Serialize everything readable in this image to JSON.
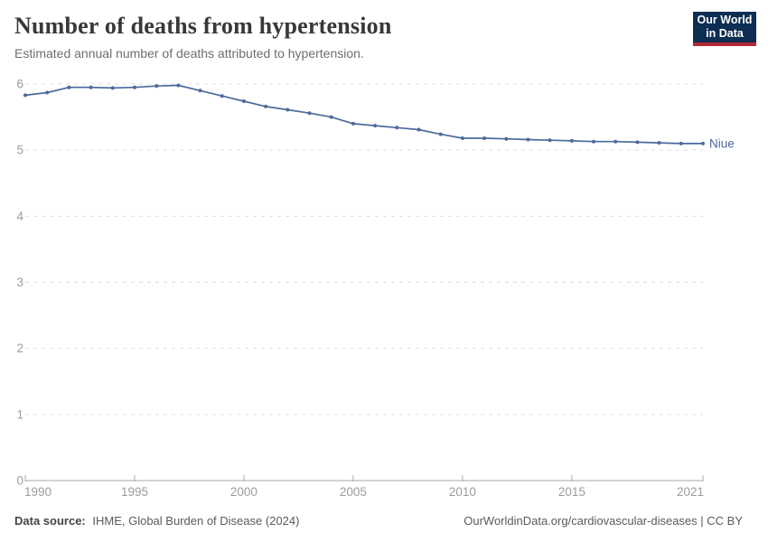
{
  "header": {
    "title": "Number of deaths from hypertension",
    "subtitle": "Estimated annual number of deaths attributed to hypertension."
  },
  "logo": {
    "line1": "Our World",
    "line2": "in Data",
    "bg_color": "#0d2d52",
    "accent_color": "#b12833"
  },
  "footer": {
    "datasource_label": "Data source:",
    "datasource_value": "IHME, Global Burden of Disease (2024)",
    "license": "OurWorldinData.org/cardiovascular-diseases | CC BY"
  },
  "chart_data": {
    "type": "line",
    "title": "Number of deaths from hypertension",
    "xlabel": "",
    "ylabel": "",
    "xlim": [
      1990,
      2021
    ],
    "ylim": [
      0,
      6
    ],
    "x_ticks": [
      1990,
      1995,
      2000,
      2005,
      2010,
      2015,
      2021
    ],
    "y_ticks": [
      0,
      1,
      2,
      3,
      4,
      5,
      6
    ],
    "grid": "horizontal-dashed",
    "legend_position": "end-of-line-label",
    "x": [
      1990,
      1991,
      1992,
      1993,
      1994,
      1995,
      1996,
      1997,
      1998,
      1999,
      2000,
      2001,
      2002,
      2003,
      2004,
      2005,
      2006,
      2007,
      2008,
      2009,
      2010,
      2011,
      2012,
      2013,
      2014,
      2015,
      2016,
      2017,
      2018,
      2019,
      2020,
      2021
    ],
    "series": [
      {
        "name": "Niue",
        "color": "#4c6a9c",
        "values": [
          5.83,
          5.87,
          5.95,
          5.95,
          5.94,
          5.95,
          5.97,
          5.98,
          5.9,
          5.82,
          5.74,
          5.66,
          5.61,
          5.56,
          5.5,
          5.4,
          5.37,
          5.34,
          5.31,
          5.24,
          5.18,
          5.18,
          5.17,
          5.16,
          5.15,
          5.14,
          5.13,
          5.13,
          5.12,
          5.11,
          5.1,
          5.1
        ]
      }
    ]
  }
}
